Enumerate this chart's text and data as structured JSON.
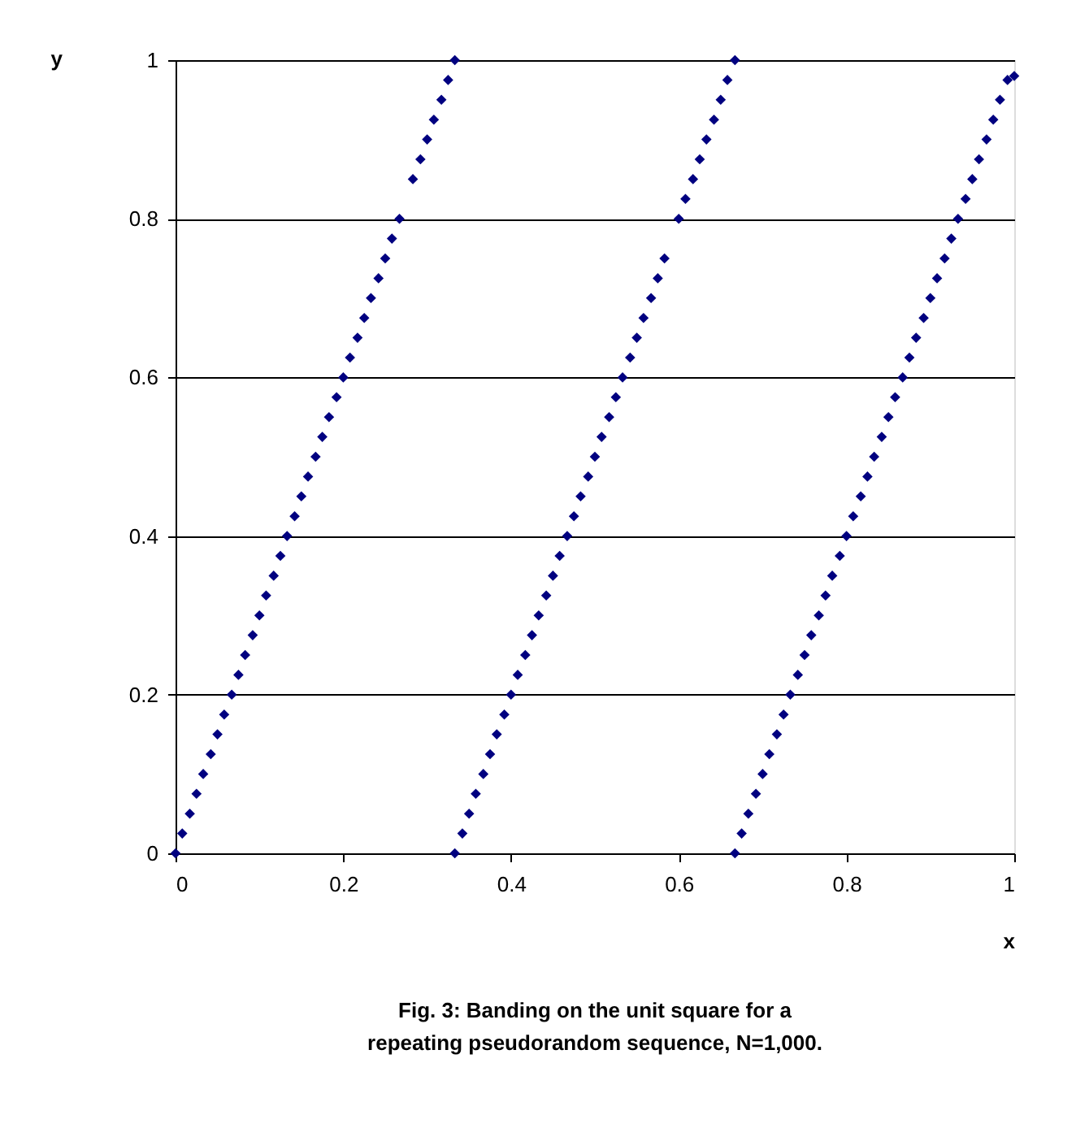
{
  "chart_data": {
    "type": "scatter",
    "xlabel": "x",
    "ylabel": "y",
    "xlim": [
      0,
      1
    ],
    "ylim": [
      0,
      1
    ],
    "xticks": [
      0,
      0.2,
      0.4,
      0.6,
      0.8,
      1
    ],
    "yticks": [
      0,
      0.2,
      0.4,
      0.6,
      0.8,
      1
    ],
    "grid": "y",
    "marker": "diamond",
    "legend": false,
    "annotations": [
      "Fig. 3: Banding on the unit square for a repeating pseudorandom sequence, N=1,000."
    ],
    "series": [
      {
        "color": "#000080",
        "x": [
          0,
          0.008,
          0.017,
          0.025,
          0.033,
          0.042,
          0.05,
          0.058,
          0.067,
          0.075,
          0.083,
          0.092,
          0.1,
          0.108,
          0.117,
          0.125,
          0.133,
          0.142,
          0.15,
          0.158,
          0.167,
          0.175,
          0.183,
          0.192,
          0.2,
          0.208,
          0.217,
          0.225,
          0.233,
          0.242,
          0.25,
          0.258,
          0.267,
          0.283,
          0.292,
          0.3,
          0.308,
          0.317,
          0.325,
          0.333
        ],
        "values": [
          0,
          0.025,
          0.05,
          0.075,
          0.1,
          0.125,
          0.15,
          0.175,
          0.2,
          0.225,
          0.25,
          0.275,
          0.3,
          0.325,
          0.35,
          0.375,
          0.4,
          0.425,
          0.45,
          0.475,
          0.5,
          0.525,
          0.55,
          0.575,
          0.6,
          0.625,
          0.65,
          0.675,
          0.7,
          0.725,
          0.75,
          0.775,
          0.8,
          0.85,
          0.875,
          0.9,
          0.925,
          0.95,
          0.975,
          1
        ]
      },
      {
        "color": "#000080",
        "x": [
          0.333,
          0.342,
          0.35,
          0.358,
          0.367,
          0.375,
          0.383,
          0.392,
          0.4,
          0.408,
          0.417,
          0.425,
          0.433,
          0.442,
          0.45,
          0.458,
          0.467,
          0.475,
          0.483,
          0.492,
          0.5,
          0.508,
          0.517,
          0.525,
          0.533,
          0.542,
          0.55,
          0.558,
          0.567,
          0.575,
          0.583,
          0.6,
          0.608,
          0.617,
          0.625,
          0.633,
          0.642,
          0.65,
          0.658,
          0.667
        ],
        "values": [
          0,
          0.025,
          0.05,
          0.075,
          0.1,
          0.125,
          0.15,
          0.175,
          0.2,
          0.225,
          0.25,
          0.275,
          0.3,
          0.325,
          0.35,
          0.375,
          0.4,
          0.425,
          0.45,
          0.475,
          0.5,
          0.525,
          0.55,
          0.575,
          0.6,
          0.625,
          0.65,
          0.675,
          0.7,
          0.725,
          0.75,
          0.8,
          0.825,
          0.85,
          0.875,
          0.9,
          0.925,
          0.95,
          0.975,
          1
        ]
      },
      {
        "color": "#000080",
        "x": [
          0.667,
          0.675,
          0.683,
          0.692,
          0.7,
          0.708,
          0.717,
          0.725,
          0.733,
          0.742,
          0.75,
          0.758,
          0.767,
          0.775,
          0.783,
          0.792,
          0.8,
          0.808,
          0.817,
          0.825,
          0.833,
          0.842,
          0.85,
          0.858,
          0.867,
          0.875,
          0.883,
          0.892,
          0.9,
          0.908,
          0.917,
          0.925,
          0.933,
          0.942,
          0.95,
          0.958,
          0.967,
          0.975,
          0.983,
          0.992,
          1
        ],
        "values": [
          0,
          0.025,
          0.05,
          0.075,
          0.1,
          0.125,
          0.15,
          0.175,
          0.2,
          0.225,
          0.25,
          0.275,
          0.3,
          0.325,
          0.35,
          0.375,
          0.4,
          0.425,
          0.45,
          0.475,
          0.5,
          0.525,
          0.55,
          0.575,
          0.6,
          0.625,
          0.65,
          0.675,
          0.7,
          0.725,
          0.75,
          0.775,
          0.8,
          0.825,
          0.85,
          0.875,
          0.9,
          0.925,
          0.95,
          0.975,
          0.98
        ]
      }
    ]
  }
}
